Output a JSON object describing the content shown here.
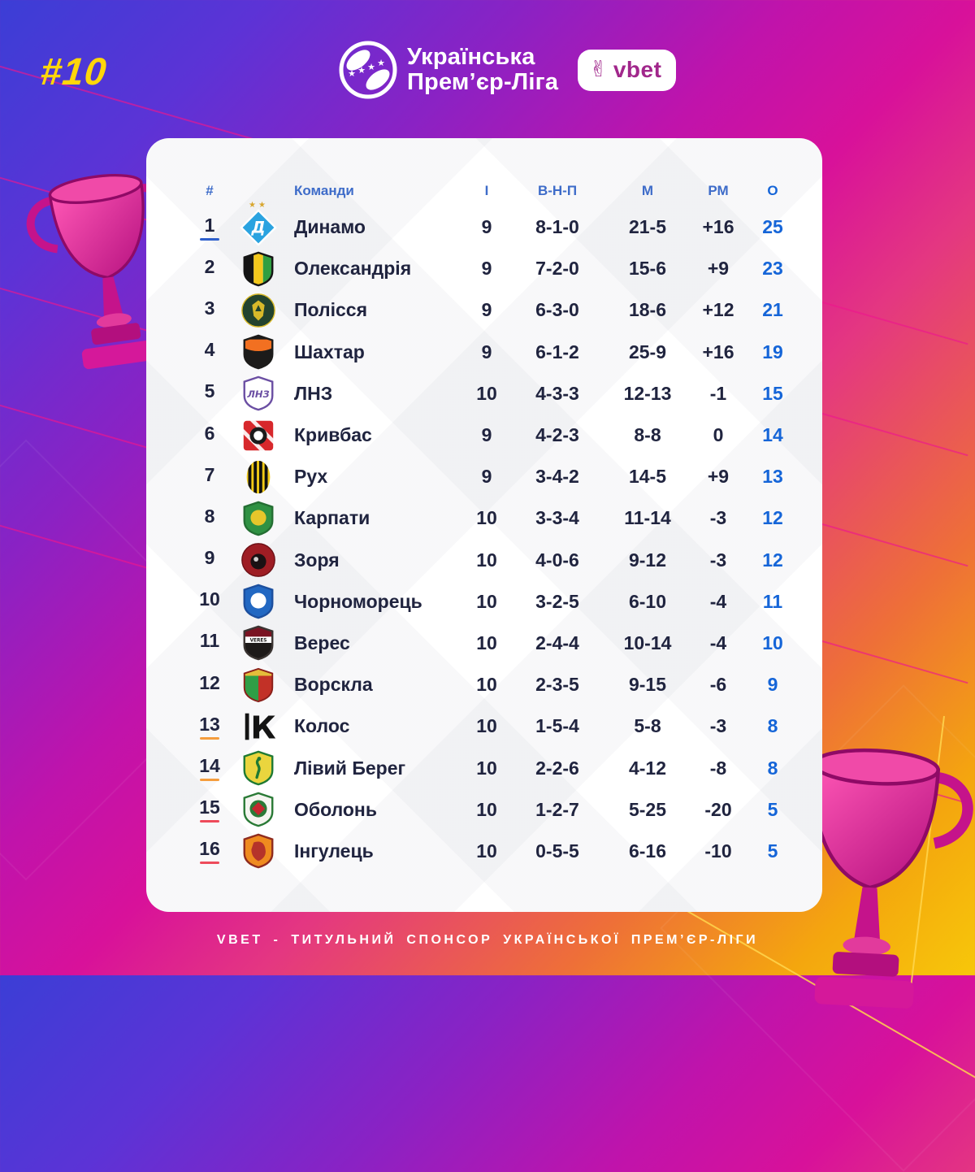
{
  "issue_number": "#10",
  "league": {
    "name_line1": "Українська",
    "name_line2": "Прем’єр-Ліга"
  },
  "sponsor": {
    "name": "vbet",
    "icon": "victory-hand-icon",
    "brand_color": "#a1278b"
  },
  "footer": {
    "text": "VBET - ТИТУЛЬНИЙ СПОНСОР УКРАЇНСЬКОЇ ПРЕМ’ЄР-ЛІГИ"
  },
  "colors": {
    "accent_blue": "#1565d8",
    "header_blue": "#3e6cc9",
    "text_navy": "#20243f",
    "issue_yellow": "#ffd60a",
    "star_gold": "#d8a62e",
    "markers": {
      "blue": "#2e5fcc",
      "orange": "#f59d3d",
      "red": "#ee4b5b"
    }
  },
  "table": {
    "headers": {
      "position": "#",
      "team": "Команди",
      "games": "І",
      "wdl": "В-Н-П",
      "goals": "М",
      "gd": "РМ",
      "points": "О"
    },
    "rows": [
      {
        "position": "1",
        "team": "Динамо",
        "games": "9",
        "wdl": "8-1-0",
        "goals": "21-5",
        "gd": "+16",
        "points": "25",
        "marker": "blue",
        "stars": 2,
        "logo": {
          "shape": "diamond",
          "c1": "#2aa3e0",
          "c2": "#ffffff",
          "text": "Д"
        }
      },
      {
        "position": "2",
        "team": "Олександрія",
        "games": "9",
        "wdl": "7-2-0",
        "goals": "15-6",
        "gd": "+9",
        "points": "23",
        "marker": null,
        "stars": 0,
        "logo": {
          "shape": "shield-stripes",
          "c1": "#f2c71c",
          "c2": "#141414",
          "c3": "#2f9e41"
        }
      },
      {
        "position": "3",
        "team": "Полісся",
        "games": "9",
        "wdl": "6-3-0",
        "goals": "18-6",
        "gd": "+12",
        "points": "21",
        "marker": null,
        "stars": 0,
        "logo": {
          "shape": "circle",
          "variant": "wolf",
          "c1": "#23432e",
          "c2": "#d8b92a"
        }
      },
      {
        "position": "4",
        "team": "Шахтар",
        "games": "9",
        "wdl": "6-1-2",
        "goals": "25-9",
        "gd": "+16",
        "points": "19",
        "marker": null,
        "stars": 0,
        "logo": {
          "shape": "shield",
          "variant": "flame",
          "c1": "#1c1b1a",
          "c2": "#f27021",
          "c3": "#1c1b1a"
        }
      },
      {
        "position": "5",
        "team": "ЛНЗ",
        "games": "10",
        "wdl": "4-3-3",
        "goals": "12-13",
        "gd": "-1",
        "points": "15",
        "marker": null,
        "stars": 0,
        "logo": {
          "shape": "shield",
          "variant": "text",
          "c1": "#ffffff",
          "c2": "#6b4fa3",
          "c3": "#6b4fa3",
          "text": "ЛНЗ"
        }
      },
      {
        "position": "6",
        "team": "Кривбас",
        "games": "9",
        "wdl": "4-2-3",
        "goals": "8-8",
        "gd": "0",
        "points": "14",
        "marker": null,
        "stars": 0,
        "logo": {
          "shape": "square-stripes",
          "c1": "#d7282c",
          "c2": "#1b1b1b",
          "c3": "#ffffff"
        }
      },
      {
        "position": "7",
        "team": "Рух",
        "games": "9",
        "wdl": "3-4-2",
        "goals": "14-5",
        "gd": "+9",
        "points": "13",
        "marker": null,
        "stars": 0,
        "logo": {
          "shape": "ellipse-stripes",
          "c1": "#111111",
          "c2": "#f2ca16"
        }
      },
      {
        "position": "8",
        "team": "Карпати",
        "games": "10",
        "wdl": "3-3-4",
        "goals": "11-14",
        "gd": "-3",
        "points": "12",
        "marker": null,
        "stars": 0,
        "logo": {
          "shape": "shield",
          "variant": "roundel",
          "c1": "#2f9143",
          "c2": "#e6c62b",
          "c3": "#246e33"
        }
      },
      {
        "position": "9",
        "team": "Зоря",
        "games": "10",
        "wdl": "4-0-6",
        "goals": "9-12",
        "gd": "-3",
        "points": "12",
        "marker": null,
        "stars": 0,
        "logo": {
          "shape": "circle",
          "variant": "ball",
          "c1": "#9e1d24",
          "c2": "#1a1113"
        }
      },
      {
        "position": "10",
        "team": "Чорноморець",
        "games": "10",
        "wdl": "3-2-5",
        "goals": "6-10",
        "gd": "-4",
        "points": "11",
        "marker": null,
        "stars": 0,
        "logo": {
          "shape": "shield",
          "variant": "roundel",
          "c1": "#2268c2",
          "c2": "#ffffff",
          "c3": "#1c4f9e"
        }
      },
      {
        "position": "11",
        "team": "Верес",
        "games": "10",
        "wdl": "2-4-4",
        "goals": "10-14",
        "gd": "-4",
        "points": "10",
        "marker": null,
        "stars": 0,
        "logo": {
          "shape": "shield",
          "variant": "veres",
          "c1": "#7a1322",
          "c2": "#1d1a19",
          "c3": "#3a3432",
          "text": "VERES"
        }
      },
      {
        "position": "12",
        "team": "Ворскла",
        "games": "10",
        "wdl": "2-3-5",
        "goals": "9-15",
        "gd": "-6",
        "points": "9",
        "marker": null,
        "stars": 0,
        "logo": {
          "shape": "shield-split",
          "c1": "#2f9e46",
          "c2": "#c23127",
          "c3": "#e4bd3a"
        }
      },
      {
        "position": "13",
        "team": "Колос",
        "games": "10",
        "wdl": "1-5-4",
        "goals": "5-8",
        "gd": "-3",
        "points": "8",
        "marker": "orange",
        "stars": 0,
        "logo": {
          "shape": "monogram",
          "c1": "#141414",
          "text": "К"
        }
      },
      {
        "position": "14",
        "team": "Лівий Берег",
        "games": "10",
        "wdl": "2-2-6",
        "goals": "4-12",
        "gd": "-8",
        "points": "8",
        "marker": "orange",
        "stars": 0,
        "logo": {
          "shape": "shield",
          "variant": "bird",
          "c1": "#ead53e",
          "c2": "#1f7a33",
          "c3": "#1f7a33"
        }
      },
      {
        "position": "15",
        "team": "Оболонь",
        "games": "10",
        "wdl": "1-2-7",
        "goals": "5-25",
        "gd": "-20",
        "points": "5",
        "marker": "red",
        "stars": 0,
        "logo": {
          "shape": "shield",
          "variant": "obolon",
          "c1": "#f5f5f0",
          "c2": "#c4262e",
          "c3": "#2a7a36"
        }
      },
      {
        "position": "16",
        "team": "Інгулець",
        "games": "10",
        "wdl": "0-5-5",
        "goals": "6-16",
        "gd": "-10",
        "points": "5",
        "marker": "red",
        "stars": 0,
        "logo": {
          "shape": "shield",
          "variant": "lion",
          "c1": "#ef8b1f",
          "c2": "#b5332a",
          "c3": "#8f2b1e"
        }
      }
    ]
  },
  "chart_data": {
    "type": "table",
    "title": "Українська Прем’єр-Ліга — турнірна таблиця, тур #10",
    "columns": [
      "#",
      "Команди",
      "І",
      "В-Н-П",
      "М",
      "РМ",
      "О"
    ],
    "rows": [
      [
        1,
        "Динамо",
        9,
        "8-1-0",
        "21-5",
        "+16",
        25
      ],
      [
        2,
        "Олександрія",
        9,
        "7-2-0",
        "15-6",
        "+9",
        23
      ],
      [
        3,
        "Полісся",
        9,
        "6-3-0",
        "18-6",
        "+12",
        21
      ],
      [
        4,
        "Шахтар",
        9,
        "6-1-2",
        "25-9",
        "+16",
        19
      ],
      [
        5,
        "ЛНЗ",
        10,
        "4-3-3",
        "12-13",
        "-1",
        15
      ],
      [
        6,
        "Кривбас",
        9,
        "4-2-3",
        "8-8",
        "0",
        14
      ],
      [
        7,
        "Рух",
        9,
        "3-4-2",
        "14-5",
        "+9",
        13
      ],
      [
        8,
        "Карпати",
        10,
        "3-3-4",
        "11-14",
        "-3",
        12
      ],
      [
        9,
        "Зоря",
        10,
        "4-0-6",
        "9-12",
        "-3",
        12
      ],
      [
        10,
        "Чорноморець",
        10,
        "3-2-5",
        "6-10",
        "-4",
        11
      ],
      [
        11,
        "Верес",
        10,
        "2-4-4",
        "10-14",
        "-4",
        10
      ],
      [
        12,
        "Ворскла",
        10,
        "2-3-5",
        "9-15",
        "-6",
        9
      ],
      [
        13,
        "Колос",
        10,
        "1-5-4",
        "5-8",
        "-3",
        8
      ],
      [
        14,
        "Лівий Берег",
        10,
        "2-2-6",
        "4-12",
        "-8",
        8
      ],
      [
        15,
        "Оболонь",
        10,
        "1-2-7",
        "5-25",
        "-20",
        5
      ],
      [
        16,
        "Інгулець",
        10,
        "0-5-5",
        "6-16",
        "-10",
        5
      ]
    ]
  }
}
